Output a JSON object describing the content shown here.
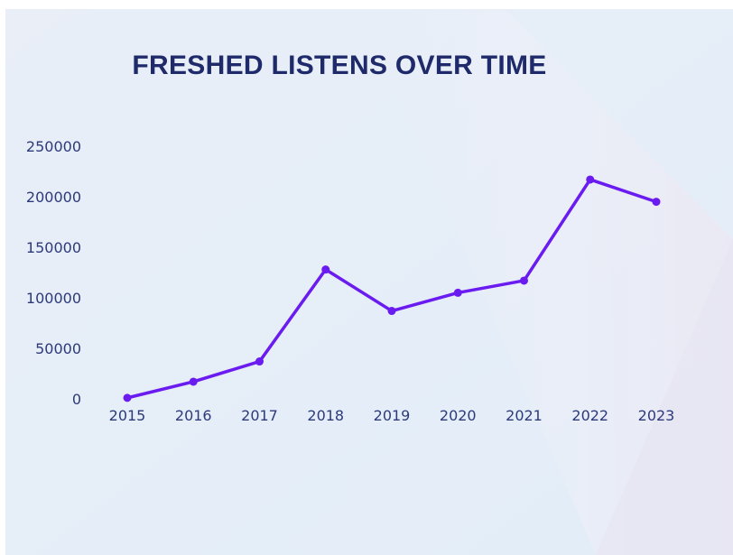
{
  "chart_data": {
    "type": "line",
    "title": "FRESHED LISTENS OVER TIME",
    "xlabel": "",
    "ylabel": "",
    "categories": [
      "2015",
      "2016",
      "2017",
      "2018",
      "2019",
      "2020",
      "2021",
      "2022",
      "2023"
    ],
    "series": [
      {
        "values": [
          1000,
          17000,
          37000,
          128000,
          87000,
          105000,
          117000,
          217000,
          195000
        ],
        "color": "#6a1bf0"
      }
    ],
    "ylim": [
      0,
      250000
    ],
    "yticks": [
      0,
      50000,
      100000,
      150000,
      200000,
      250000
    ],
    "grid": false,
    "legend": "none",
    "colors": {
      "title": "#1f2a6b",
      "ticks": "#2c3a7a",
      "line": "#6a1bf0",
      "background": "#e8eff8"
    }
  }
}
